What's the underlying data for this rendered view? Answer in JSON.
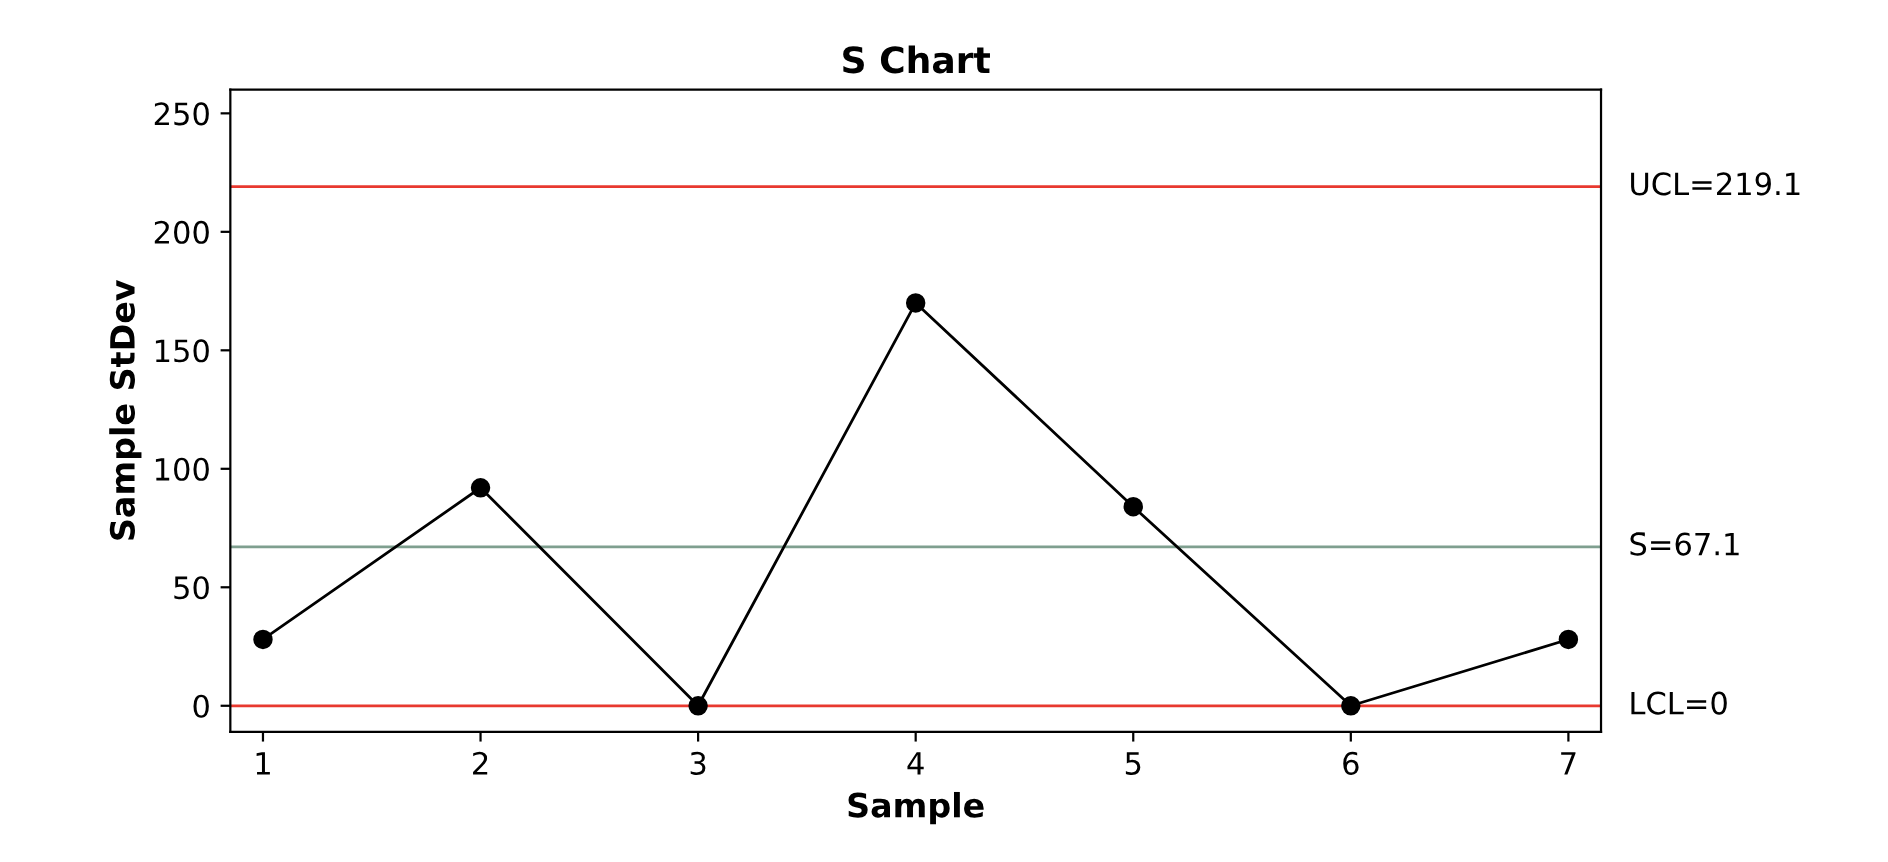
{
  "chart_data": {
    "type": "line",
    "title": "S Chart",
    "xlabel": "Sample",
    "ylabel": "Sample StDev",
    "x": [
      1,
      2,
      3,
      4,
      5,
      6,
      7
    ],
    "series": [
      {
        "color": "#000000",
        "values": [
          28,
          92,
          0,
          170,
          84,
          0,
          28
        ]
      }
    ],
    "marker": "circle",
    "line_style": "solid",
    "grid": false,
    "legend": false,
    "xlim": [
      0.85,
      7.15
    ],
    "xticks": [
      1,
      2,
      3,
      4,
      5,
      6,
      7
    ],
    "ylim": [
      -11,
      260
    ],
    "yticks": [
      0,
      50,
      100,
      150,
      200,
      250
    ],
    "ref_lines": [
      {
        "axis": "y",
        "value": 219.1,
        "label": "UCL=219.1",
        "color": "#e8392f"
      },
      {
        "axis": "y",
        "value": 67.1,
        "label": "S̄=67.1",
        "color": "#7f9f8f"
      },
      {
        "axis": "y",
        "value": 0,
        "label": "LCL=0",
        "color": "#e8392f"
      }
    ]
  }
}
